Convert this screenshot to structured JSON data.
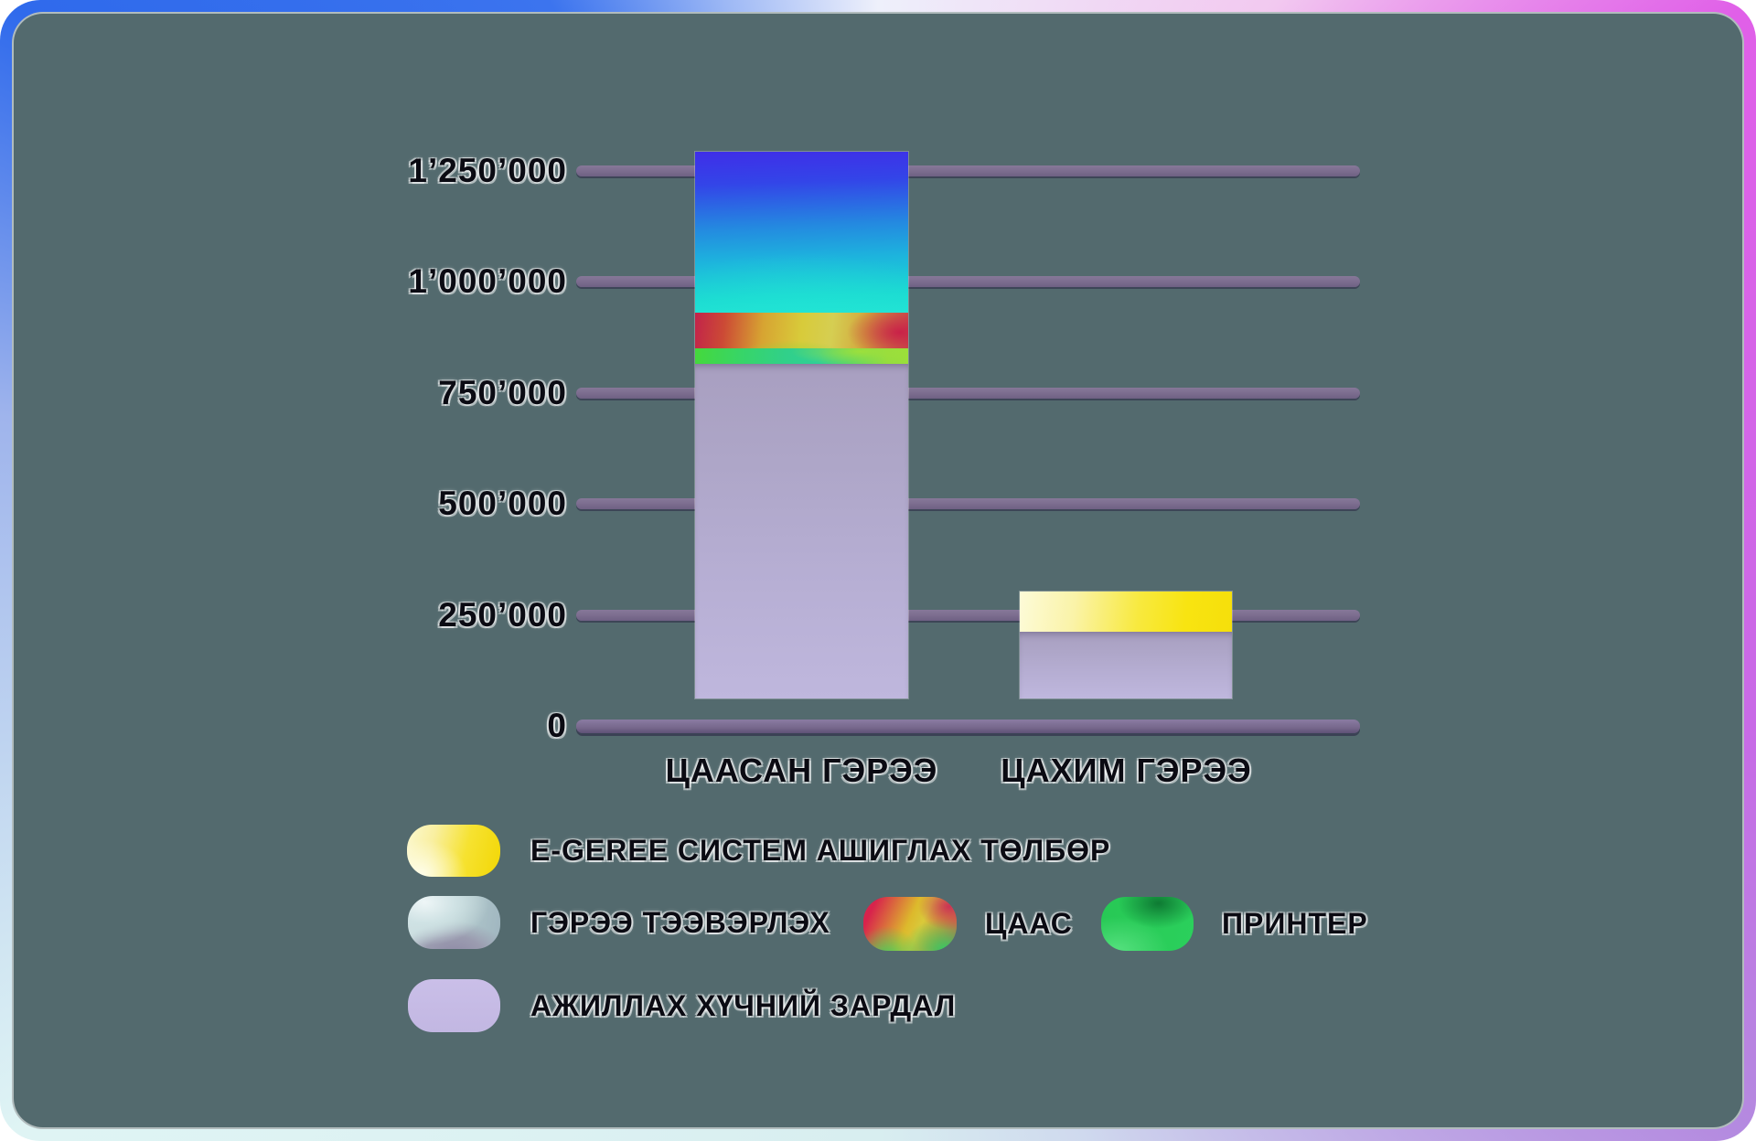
{
  "card": {
    "background_color": "#536a6e",
    "frame_gradient": [
      "#2f6aec",
      "#eef0fb",
      "#e060e8",
      "#d8eef0"
    ]
  },
  "axis": {
    "grid_color": "#7b6c8e",
    "text_color": "#0b0b13"
  },
  "chart_data": {
    "type": "bar",
    "subtype": "stacked-vertical",
    "categories": [
      "ЦААСАН ГЭРЭЭ",
      "ЦАХИМ ГЭРЭЭ"
    ],
    "series": [
      {
        "key": "labor",
        "name": "АЖИЛЛАХ ХҮЧНИЙ ЗАРДАЛ",
        "color": "#b6aed3",
        "values": [
          750000,
          150000
        ]
      },
      {
        "key": "printer",
        "name": "ПРИНТЕР",
        "color": "#35d06e",
        "values": [
          35000,
          0
        ]
      },
      {
        "key": "paper",
        "name": "ЦААС",
        "color": "#d8b73a",
        "values": [
          80000,
          0
        ]
      },
      {
        "key": "transport",
        "name": "ГЭРЭЭ ТЭЭВЭРЛЭХ",
        "color": "#2a8ae2",
        "values": [
          360000,
          0
        ]
      },
      {
        "key": "egeree",
        "name": "E-GEREE СИСТЕМ АШИГЛАХ ТӨЛБӨР",
        "color": "#f8e424",
        "values": [
          0,
          90000
        ]
      }
    ],
    "totals": [
      1225000,
      240000
    ],
    "y_ticks": [
      "1’250’000",
      "1’000’000",
      "750’000",
      "500’000",
      "250’000",
      "0"
    ],
    "y_tick_values": [
      1250000,
      1000000,
      750000,
      500000,
      250000,
      0
    ],
    "ylim": [
      0,
      1250000
    ],
    "grid": "horizontal",
    "legend_position": "bottom-left"
  },
  "legend": {
    "items": [
      {
        "label": "E-GEREE СИСТЕМ АШИГЛАХ ТӨЛБӨР",
        "swatch": "yellow-gradient-pill",
        "color": "#f6e424"
      },
      {
        "label": "ГЭРЭЭ ТЭЭВЭРЛЭХ",
        "swatch": "silver-blue-gradient-pill",
        "color": "#b8cdd2"
      },
      {
        "label": "ЦААС",
        "swatch": "red-yellow-green-gradient-pill",
        "color": "#d8b73a"
      },
      {
        "label": "ПРИНТЕР",
        "swatch": "green-gradient-pill",
        "color": "#2bcf5a"
      },
      {
        "label": "АЖИЛЛАХ ХҮЧНИЙ ЗАРДАЛ",
        "swatch": "lavender-pill",
        "color": "#c7bde6"
      }
    ]
  }
}
